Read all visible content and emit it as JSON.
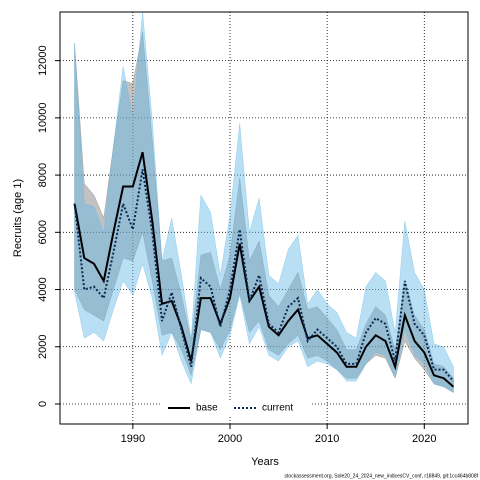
{
  "chart_data": {
    "type": "line",
    "xlabel": "Years",
    "ylabel": "Recruits (age 1)",
    "footer": "stockassessment.org, Sole20_24_2024_new_indicesCV_conf, r18849, git:1cc464b808f",
    "x": [
      1984,
      1985,
      1986,
      1987,
      1988,
      1989,
      1990,
      1991,
      1992,
      1993,
      1994,
      1995,
      1996,
      1997,
      1998,
      1999,
      2000,
      2001,
      2002,
      2003,
      2004,
      2005,
      2006,
      2007,
      2008,
      2009,
      2010,
      2011,
      2012,
      2013,
      2014,
      2015,
      2016,
      2017,
      2018,
      2019,
      2020,
      2021,
      2022,
      2023
    ],
    "xlim": [
      1982.5,
      2024.5
    ],
    "xticks": [
      1990,
      2000,
      2010,
      2020
    ],
    "ylim": [
      -700,
      13700
    ],
    "yticks": [
      0,
      2000,
      4000,
      6000,
      8000,
      10000,
      12000
    ],
    "grid": true,
    "legend": "bottom",
    "series": [
      {
        "name": "base",
        "color": "#000000",
        "band_color": "#777777",
        "dash": false,
        "values": [
          7000,
          5100,
          4900,
          4300,
          6000,
          7600,
          7600,
          8800,
          6400,
          3500,
          3600,
          2700,
          1500,
          3700,
          3700,
          2800,
          3700,
          5600,
          3600,
          4100,
          2700,
          2400,
          2900,
          3300,
          2300,
          2400,
          2100,
          1800,
          1300,
          1300,
          2000,
          2400,
          2200,
          1300,
          3100,
          2200,
          1800,
          1000,
          900,
          600
        ],
        "lower": [
          4000,
          3300,
          3100,
          2900,
          4000,
          5100,
          5000,
          6000,
          4300,
          2400,
          2500,
          1900,
          1000,
          2600,
          2500,
          1900,
          2600,
          3900,
          2500,
          2900,
          1900,
          1700,
          2100,
          2400,
          1600,
          1700,
          1500,
          1200,
          900,
          900,
          1400,
          1700,
          1600,
          900,
          2200,
          1600,
          1200,
          700,
          600,
          400
        ],
        "upper": [
          12600,
          7700,
          7300,
          6500,
          9000,
          11300,
          11200,
          13000,
          9200,
          5000,
          5100,
          3800,
          2200,
          5200,
          5300,
          4000,
          5200,
          7900,
          5000,
          5700,
          3800,
          3400,
          4000,
          4600,
          3300,
          3400,
          3000,
          2600,
          1900,
          1900,
          2800,
          3400,
          3100,
          1900,
          4300,
          3100,
          2600,
          1400,
          1300,
          900
        ]
      },
      {
        "name": "current",
        "color": "#0a2a55",
        "band_color": "#63b8e6",
        "dash": true,
        "values": [
          7000,
          4000,
          4100,
          3700,
          5300,
          7000,
          6100,
          8200,
          6000,
          2900,
          3900,
          2600,
          1300,
          4400,
          4100,
          2700,
          4000,
          6100,
          3600,
          4500,
          2800,
          2500,
          3400,
          3700,
          2200,
          2600,
          2300,
          2000,
          1400,
          1400,
          2500,
          3000,
          2800,
          1500,
          4300,
          2800,
          2400,
          1200,
          1200,
          800
        ],
        "lower": [
          3900,
          2300,
          2500,
          2200,
          3300,
          4300,
          3800,
          4900,
          3700,
          1700,
          2500,
          1500,
          700,
          2600,
          2500,
          1600,
          2400,
          3800,
          2100,
          2700,
          1700,
          1500,
          2000,
          2200,
          1300,
          1500,
          1400,
          1200,
          800,
          800,
          1400,
          1800,
          1700,
          900,
          2600,
          1700,
          1400,
          700,
          600,
          400
        ],
        "upper": [
          12600,
          7000,
          6900,
          6000,
          9000,
          11800,
          10000,
          13700,
          9900,
          5000,
          6500,
          4500,
          2300,
          7300,
          6700,
          4500,
          6600,
          9800,
          6000,
          7200,
          4500,
          4200,
          5400,
          5900,
          3500,
          4000,
          3500,
          3200,
          2500,
          2300,
          4100,
          4600,
          4300,
          2500,
          6400,
          4600,
          4000,
          2100,
          2000,
          1300
        ]
      }
    ]
  }
}
